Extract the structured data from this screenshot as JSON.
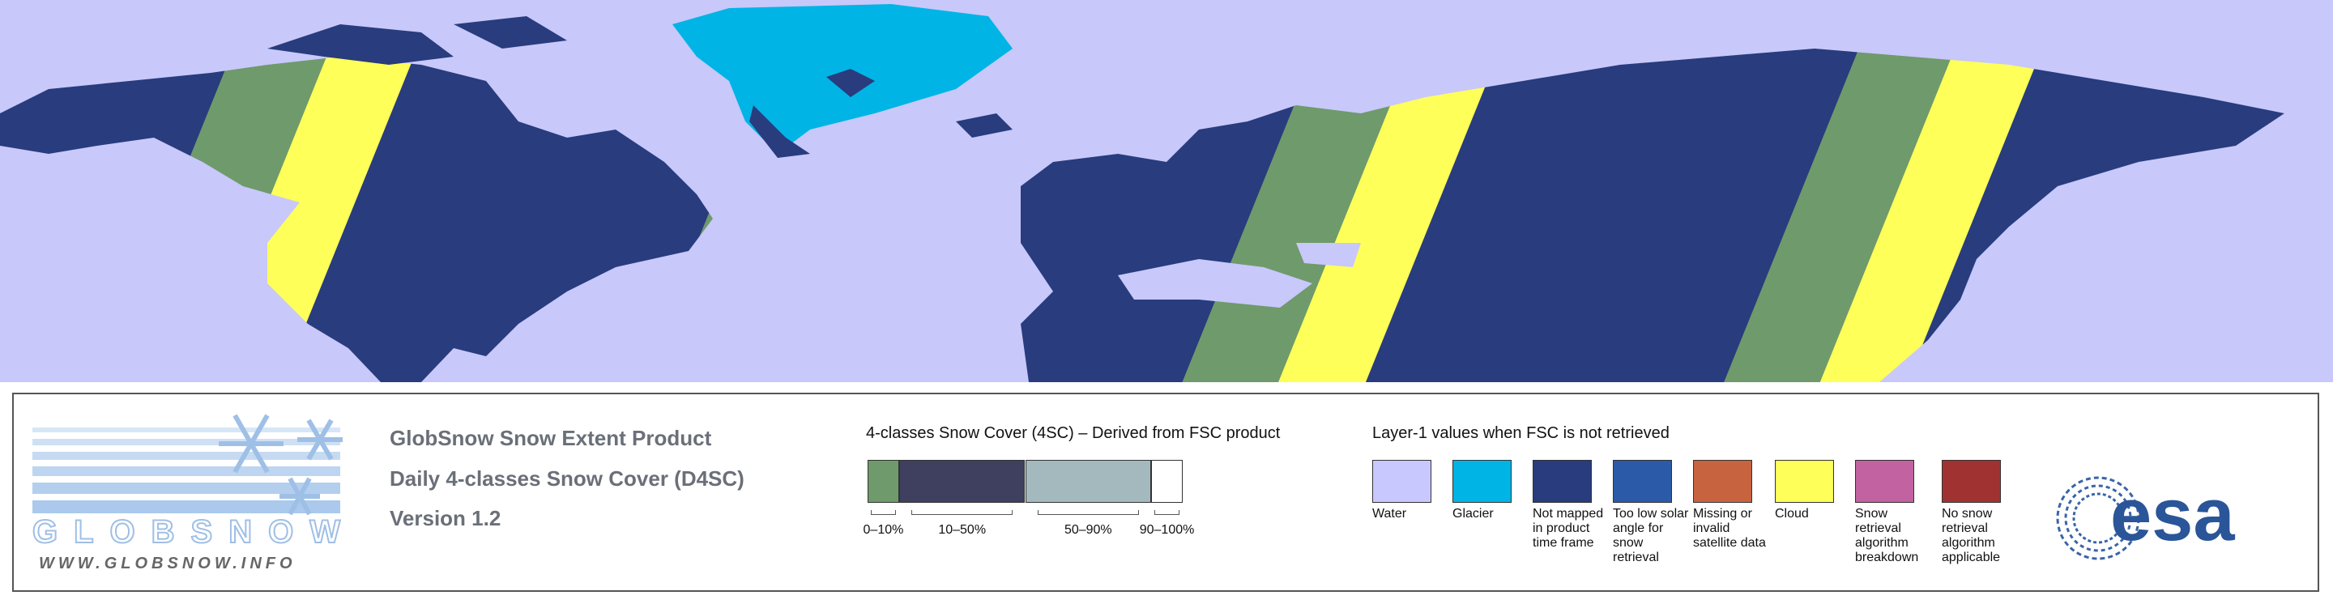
{
  "logo": {
    "name": "GLOBSNOW",
    "url": "WWW.GLOBSNOW.INFO"
  },
  "product": {
    "title": "GlobSnow Snow Extent Product",
    "subtitle": "Daily 4-classes Snow Cover (D4SC)",
    "version": "Version 1.2"
  },
  "snow_cover_legend": {
    "title": "4-classes Snow Cover (4SC) – Derived from FSC product",
    "classes": [
      {
        "label": "0–10%",
        "color": "#6f9a6b"
      },
      {
        "label": "10–50%",
        "color": "#3f3f5f"
      },
      {
        "label": "50–90%",
        "color": "#a3b9bd"
      },
      {
        "label": "90–100%",
        "color": "#ffffff"
      }
    ]
  },
  "layer1_legend": {
    "title": "Layer-1 values when FSC is not retrieved",
    "classes": [
      {
        "label": "Water",
        "color": "#c8c8ff"
      },
      {
        "label": "Glacier",
        "color": "#00b4e6"
      },
      {
        "label": "Not mapped in product time frame",
        "color": "#283c7e"
      },
      {
        "label": "Too low solar angle for snow retrieval",
        "color": "#2b5ba8"
      },
      {
        "label": "Missing or invalid satellite data",
        "color": "#c8633f"
      },
      {
        "label": "Cloud",
        "color": "#ffff5a"
      },
      {
        "label": "Snow retrieval algorithm breakdown",
        "color": "#c262a0"
      },
      {
        "label": "No snow retrieval algorithm applicable",
        "color": "#a03232"
      }
    ]
  },
  "agency": {
    "name": "esa"
  }
}
